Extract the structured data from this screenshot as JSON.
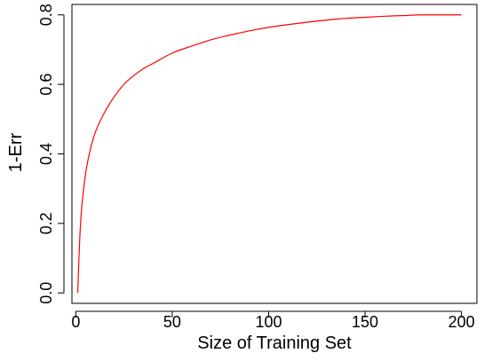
{
  "chart_data": {
    "type": "line",
    "xlabel": "Size of Training Set",
    "ylabel": "1-Err",
    "xlim": [
      -2,
      208
    ],
    "ylim": [
      -0.03,
      0.83
    ],
    "x_ticks": [
      {
        "value": 0,
        "label": "0"
      },
      {
        "value": 50,
        "label": "50"
      },
      {
        "value": 100,
        "label": "100"
      },
      {
        "value": 150,
        "label": "150"
      },
      {
        "value": 200,
        "label": "200"
      }
    ],
    "y_ticks": [
      {
        "value": 0.0,
        "label": "0.0"
      },
      {
        "value": 0.2,
        "label": "0.2"
      },
      {
        "value": 0.4,
        "label": "0.4"
      },
      {
        "value": 0.6,
        "label": "0.6"
      },
      {
        "value": 0.8,
        "label": "0.8"
      }
    ],
    "grid": false,
    "legend": "none",
    "line_color": "#ff0000",
    "series": [
      {
        "x": [
          1,
          2,
          3,
          5,
          7,
          10,
          15,
          20,
          25,
          30,
          35,
          40,
          50,
          60,
          70,
          80,
          90,
          100,
          110,
          120,
          130,
          140,
          150,
          160,
          170,
          180,
          190,
          200
        ],
        "y": [
          0.0,
          0.15,
          0.24,
          0.34,
          0.4,
          0.46,
          0.52,
          0.565,
          0.6,
          0.625,
          0.645,
          0.66,
          0.69,
          0.71,
          0.728,
          0.742,
          0.754,
          0.764,
          0.772,
          0.779,
          0.785,
          0.79,
          0.793,
          0.796,
          0.798,
          0.8,
          0.8,
          0.8
        ]
      }
    ]
  }
}
